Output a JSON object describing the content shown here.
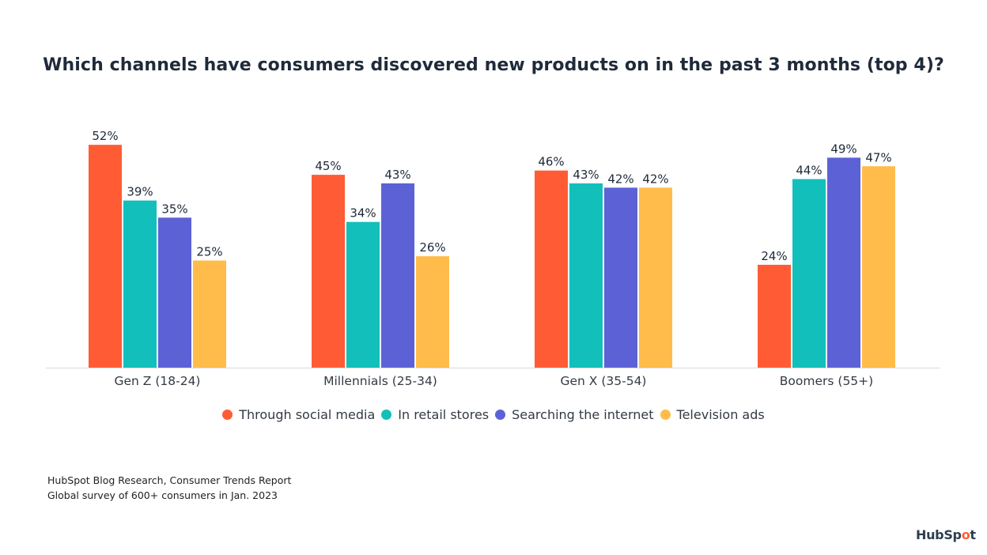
{
  "chart_data": {
    "type": "bar",
    "title": "Which channels have consumers discovered new products on in the past 3 months (top 4)?",
    "xlabel": "",
    "ylabel": "",
    "ylim": [
      0,
      60
    ],
    "grid": false,
    "legend_position": "bottom",
    "categories": [
      "Gen Z (18-24)",
      "Millennials (25-34)",
      "Gen X (35-54)",
      "Boomers (55+)"
    ],
    "series": [
      {
        "name": "Through social media",
        "color": "#ff5c35",
        "values": [
          52,
          45,
          46,
          24
        ]
      },
      {
        "name": "In retail stores",
        "color": "#12bfbb",
        "values": [
          39,
          34,
          43,
          44
        ]
      },
      {
        "name": "Searching the internet",
        "color": "#5c62d6",
        "values": [
          35,
          43,
          42,
          49
        ]
      },
      {
        "name": "Television ads",
        "color": "#ffbc4b",
        "values": [
          25,
          26,
          42,
          47
        ]
      }
    ],
    "value_suffix": "%"
  },
  "source": {
    "line1": "HubSpot Blog Research, Consumer Trends Report",
    "line2": "Global survey of 600+ consumers in Jan. 2023"
  },
  "logo": {
    "text_a": "HubSp",
    "text_o": "o",
    "text_b": "t"
  }
}
